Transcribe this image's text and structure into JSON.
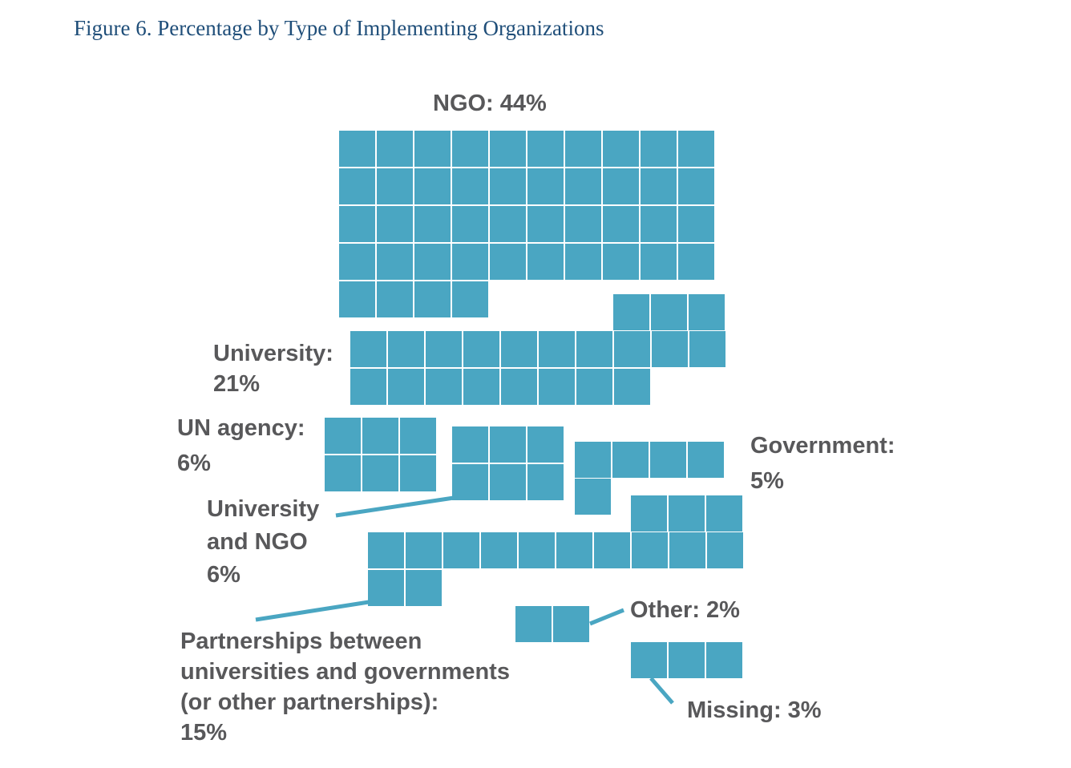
{
  "title": "Figure 6. Percentage by Type of Implementing Organizations",
  "colors": {
    "square": "#4aa6c2",
    "label": "#58585a",
    "title": "#1f4e79"
  },
  "chart_data": {
    "type": "waffle",
    "title": "Figure 6. Percentage by Type of Implementing Organizations",
    "unit": "%",
    "series": [
      {
        "category": "NGO",
        "value": 44,
        "label_lines": [
          "NGO: 44%"
        ]
      },
      {
        "category": "University",
        "value": 21,
        "label_lines": [
          "University:",
          "21%"
        ]
      },
      {
        "category": "UN agency",
        "value": 6,
        "label_lines": [
          "UN agency:",
          "6%"
        ]
      },
      {
        "category": "University and NGO",
        "value": 6,
        "label_lines": [
          "University",
          "and NGO",
          "6%"
        ]
      },
      {
        "category": "Government",
        "value": 5,
        "label_lines": [
          "Government:",
          "5%"
        ]
      },
      {
        "category": "Partnerships between universities and governments (or other partnerships)",
        "value": 15,
        "label_lines": [
          "Partnerships between",
          "universities and governments",
          "(or other partnerships):",
          "15%"
        ]
      },
      {
        "category": "Other",
        "value": 2,
        "label_lines": [
          "Other: 2%"
        ]
      },
      {
        "category": "Missing",
        "value": 3,
        "label_lines": [
          "Missing: 3%"
        ]
      }
    ]
  }
}
